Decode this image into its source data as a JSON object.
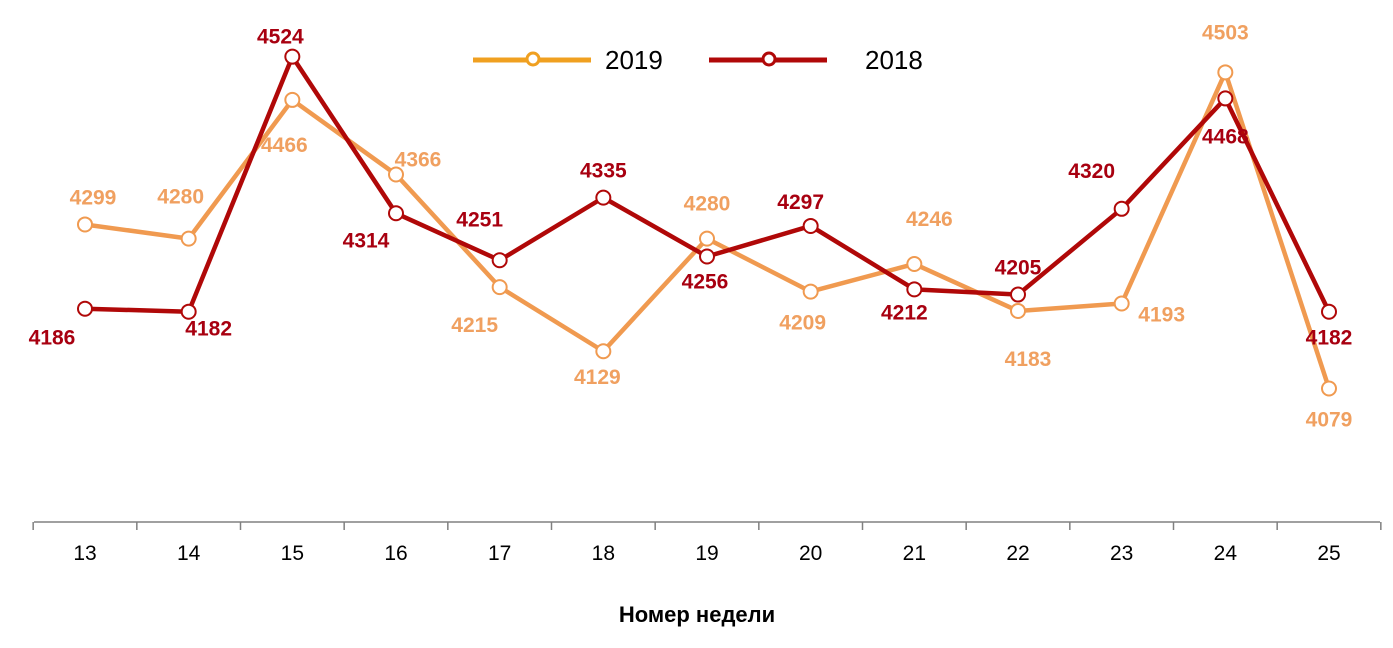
{
  "chart_data": {
    "type": "line",
    "title": "",
    "xlabel": "Номер недели",
    "ylabel": "",
    "categories": [
      "13",
      "14",
      "15",
      "16",
      "17",
      "18",
      "19",
      "20",
      "21",
      "22",
      "23",
      "24",
      "25"
    ],
    "ylim": [
      3900,
      4600
    ],
    "grid": false,
    "legend_position": "top",
    "series": [
      {
        "name": "2019",
        "color": "#F09A50",
        "legend_color": "#F0A020",
        "label_color": "#F0A060",
        "values": [
          4299,
          4280,
          4466,
          4366,
          4215,
          4129,
          4280,
          4209,
          4246,
          4183,
          4193,
          4503,
          4079
        ]
      },
      {
        "name": "2018",
        "color": "#B00808",
        "legend_color": "#B00808",
        "label_color": "#A80010",
        "values": [
          4186,
          4182,
          4524,
          4314,
          4251,
          4335,
          4256,
          4297,
          4212,
          4205,
          4320,
          4468,
          4182
        ]
      }
    ]
  }
}
